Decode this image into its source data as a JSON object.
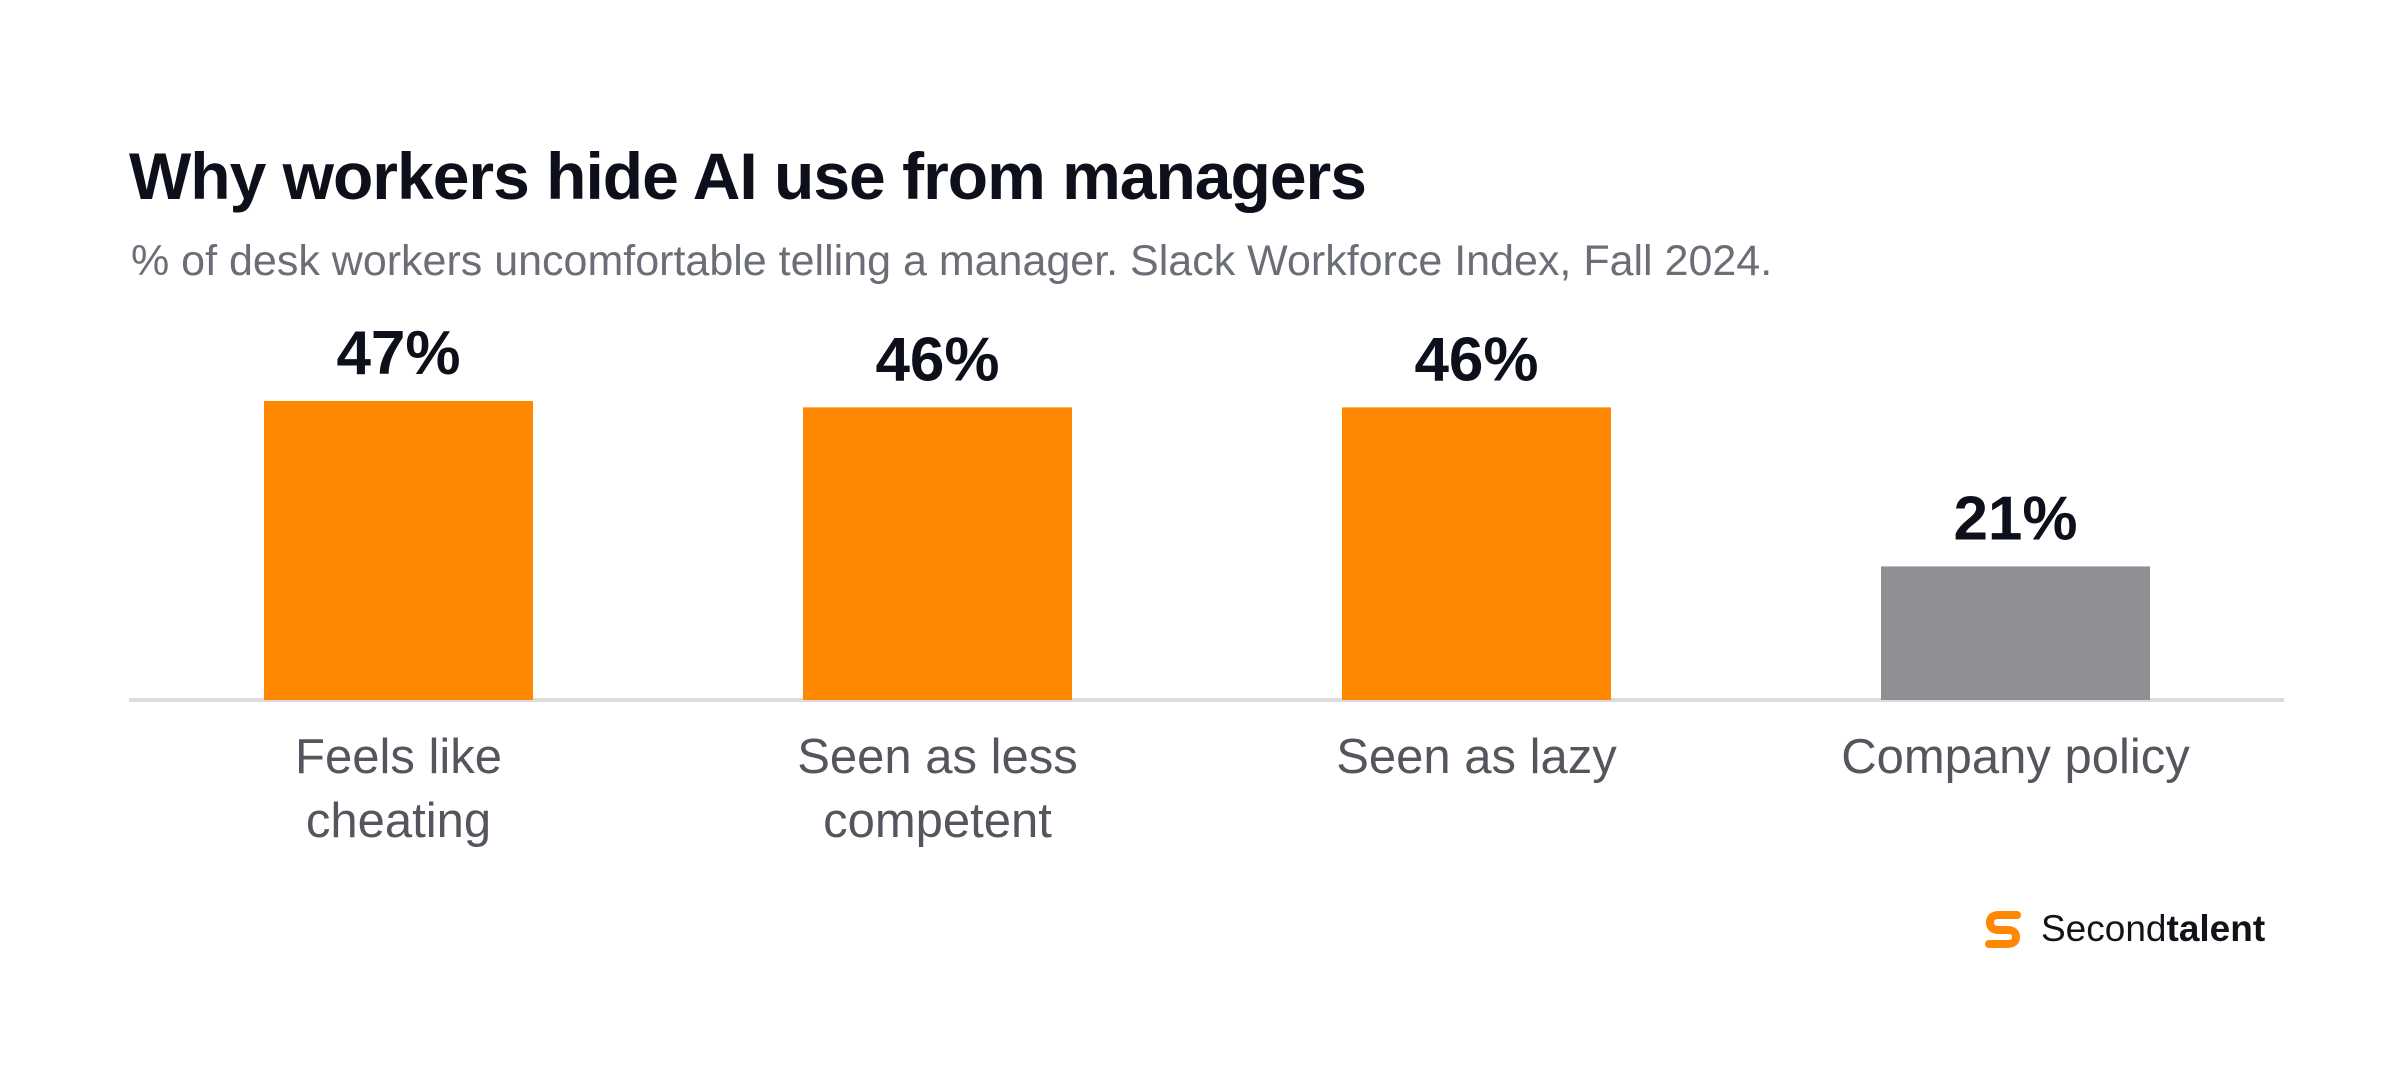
{
  "chart_data": {
    "type": "bar",
    "title": "Why workers hide AI use from managers",
    "subtitle": "% of desk workers uncomfortable telling a manager. Slack Workforce Index, Fall 2024.",
    "categories": [
      [
        "Feels like",
        "cheating"
      ],
      [
        "Seen as less",
        "competent"
      ],
      [
        "Seen as lazy"
      ],
      [
        "Company policy"
      ]
    ],
    "values": [
      47,
      46,
      46,
      21
    ],
    "value_labels": [
      "47%",
      "46%",
      "46%",
      "21%"
    ],
    "bar_colors": [
      "#ff8800",
      "#ff8800",
      "#ff8800",
      "#909094"
    ],
    "ylim": [
      0,
      47
    ],
    "grid": false,
    "legend": "none"
  },
  "brand": {
    "name_light": "Second",
    "name_bold": "talent",
    "accent_color": "#ff8800",
    "icon": "secondtalent-logo-icon"
  }
}
